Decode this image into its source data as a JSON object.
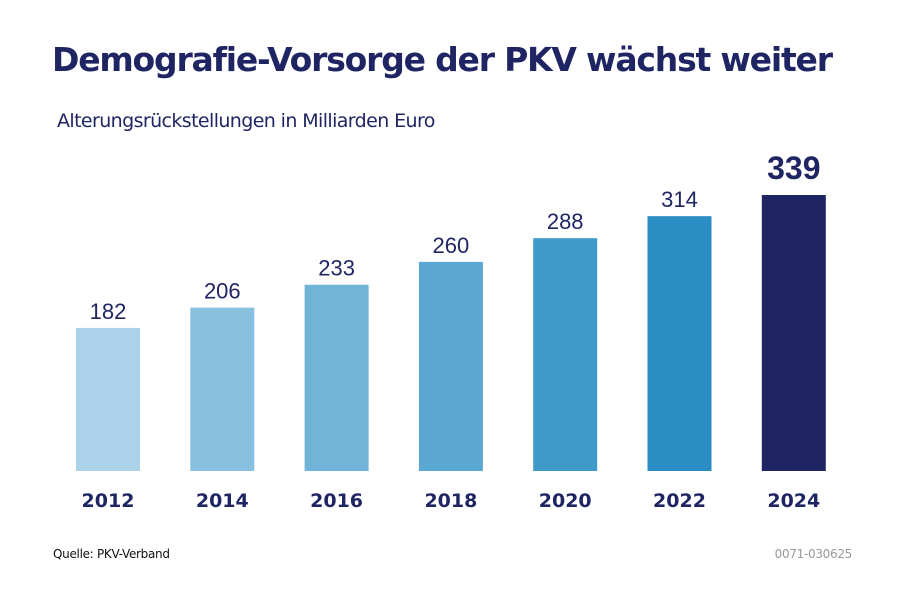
{
  "header": {
    "title": "Demografie-Vorsorge der PKV wächst weiter",
    "subtitle": "Alterungsrückstellungen in Milliarden Euro"
  },
  "footer": {
    "source": "Quelle: PKV-Verband",
    "code": "0071-030625"
  },
  "chart_data": {
    "type": "bar",
    "title": "Demografie-Vorsorge der PKV wächst weiter",
    "subtitle": "Alterungsrückstellungen in Milliarden Euro",
    "xlabel": "",
    "ylabel": "Alterungsrückstellungen in Milliarden Euro",
    "categories": [
      "2012",
      "2014",
      "2016",
      "2018",
      "2020",
      "2022",
      "2024"
    ],
    "values": [
      182,
      206,
      233,
      260,
      288,
      314,
      339
    ],
    "data_labels": [
      "182",
      "206",
      "233",
      "260",
      "288",
      "314",
      "339"
    ],
    "colors": [
      "#acd2ea",
      "#8ac0df",
      "#72b3d8",
      "#5aa7d1",
      "#3f9ac9",
      "#2a8dc4",
      "#1f2563"
    ],
    "highlight_index": 6,
    "grid": false,
    "legend": "none",
    "ylim": [
      13,
      339
    ]
  }
}
